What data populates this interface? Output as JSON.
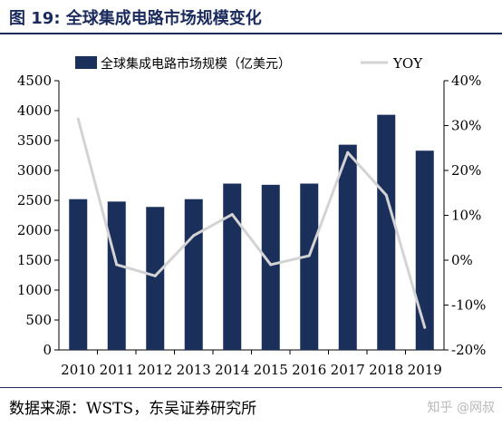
{
  "figure": {
    "title": "图 19:  全球集成电路市场规模变化",
    "source": "数据来源：WSTS，东吴证券研究所",
    "watermark": "知乎 @网叔"
  },
  "colors": {
    "bar": "#1a2f5a",
    "line": "#d3d3d3",
    "title": "#1a2b5c"
  },
  "chart_data": {
    "type": "bar",
    "categories": [
      "2010",
      "2011",
      "2012",
      "2013",
      "2014",
      "2015",
      "2016",
      "2017",
      "2018",
      "2019"
    ],
    "series": [
      {
        "name": "全球集成电路市场规模（亿美元）",
        "type": "bar",
        "axis": "left",
        "values": [
          2520,
          2480,
          2390,
          2520,
          2780,
          2760,
          2780,
          3430,
          3930,
          3330
        ]
      },
      {
        "name": "YOY",
        "type": "line",
        "axis": "right",
        "values": [
          31.5,
          -1.0,
          -3.5,
          5.5,
          10.2,
          -1.0,
          1.0,
          24.0,
          14.5,
          -15.0
        ]
      }
    ],
    "y_left": {
      "range": [
        0,
        4500
      ],
      "ticks": [
        "0",
        "500",
        "1000",
        "1500",
        "2000",
        "2500",
        "3000",
        "3500",
        "4000",
        "4500"
      ]
    },
    "y_right": {
      "range": [
        -20,
        40
      ],
      "ticks": [
        "-20%",
        "-10%",
        "0%",
        "10%",
        "20%",
        "30%",
        "40%"
      ]
    },
    "grid": false,
    "legend_position": "top"
  }
}
